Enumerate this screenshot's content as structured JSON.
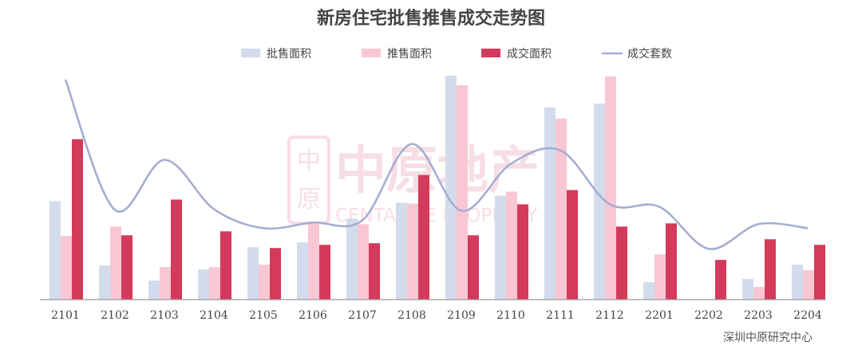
{
  "chart_data": {
    "type": "bar",
    "title": "新房住宅批售推售成交走势图",
    "xlabel": "",
    "ylabel": "",
    "categories": [
      "2101",
      "2102",
      "2103",
      "2104",
      "2105",
      "2106",
      "2107",
      "2108",
      "2109",
      "2110",
      "2111",
      "2112",
      "2201",
      "2202",
      "2203",
      "2204"
    ],
    "series": [
      {
        "name": "批售面积",
        "kind": "bar",
        "color": "#d3dcec",
        "values": [
          124,
          43,
          24,
          38,
          66,
          72,
          102,
          122,
          282,
          131,
          242,
          247,
          22,
          0,
          26,
          44
        ]
      },
      {
        "name": "推售面积",
        "kind": "bar",
        "color": "#f8c7d3",
        "values": [
          80,
          92,
          41,
          41,
          44,
          95,
          95,
          121,
          270,
          136,
          228,
          281,
          57,
          0,
          16,
          37
        ]
      },
      {
        "name": "成交面积",
        "kind": "bar",
        "color": "#d43a5b",
        "values": [
          202,
          81,
          126,
          86,
          65,
          69,
          71,
          157,
          81,
          120,
          138,
          92,
          96,
          50,
          76,
          69
        ]
      },
      {
        "name": "成交套数",
        "kind": "line",
        "color": "#a5add2",
        "values": [
          277,
          113,
          176,
          114,
          90,
          97,
          100,
          196,
          112,
          171,
          188,
          120,
          117,
          64,
          95,
          90
        ]
      }
    ],
    "ylim": [
      0,
      285
    ],
    "grid": false,
    "legend_position": "top-center"
  },
  "source": "深圳中原研究中心",
  "watermark": {
    "main": "中原地产",
    "sub": "CENTALINE PROPERTY",
    "seal": "中原"
  }
}
